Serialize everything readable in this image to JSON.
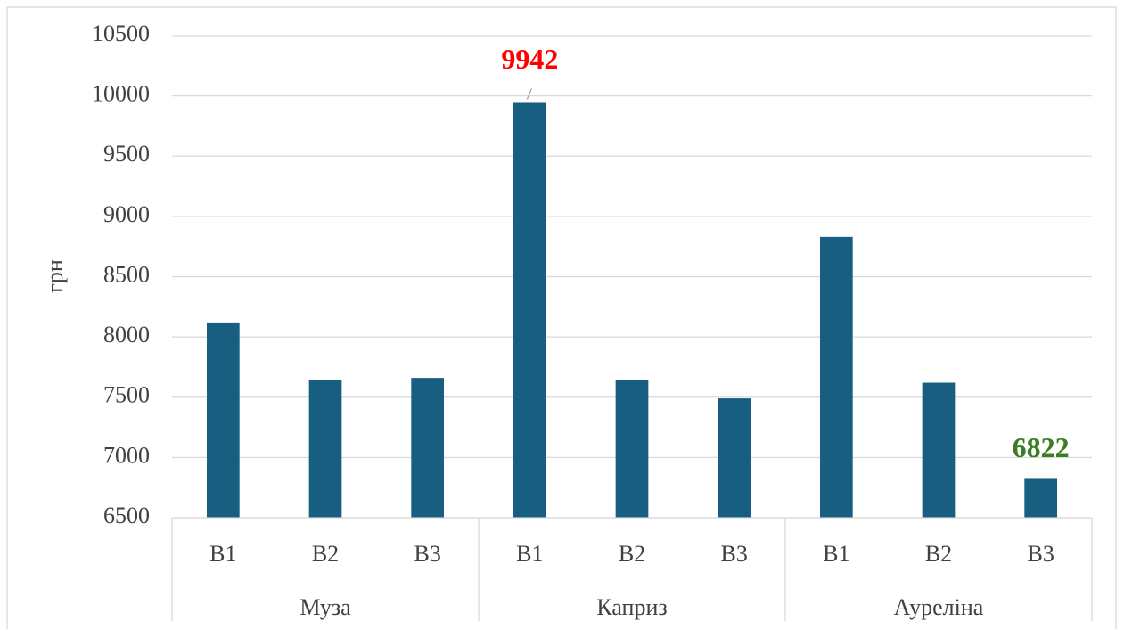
{
  "chart_data": {
    "type": "bar",
    "y_label": "грн",
    "groups": [
      "Муза",
      "Каприз",
      "Ауреліна"
    ],
    "categories": [
      "В1",
      "В2",
      "В3",
      "В1",
      "В2",
      "В3",
      "В1",
      "В2",
      "В3"
    ],
    "values": [
      8120,
      7640,
      7660,
      9942,
      7640,
      7490,
      8830,
      7620,
      6822
    ],
    "color": "#175e80",
    "labeled_points": [
      3,
      8
    ],
    "label_colors": [
      "#ff0000",
      "#3a7d22"
    ],
    "ylim": [
      6500,
      10500
    ],
    "yticks": [
      6500,
      7000,
      7500,
      8000,
      8500,
      9000,
      9500,
      10000,
      10500
    ],
    "grid": true
  }
}
